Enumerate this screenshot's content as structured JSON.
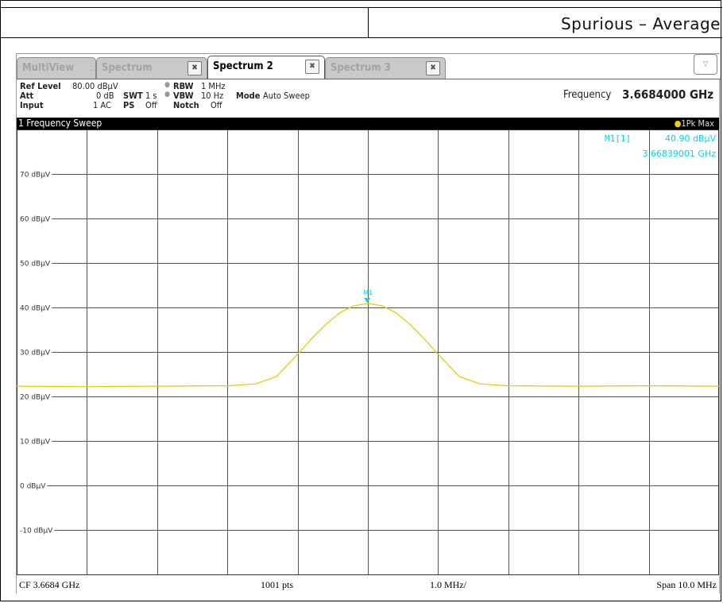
{
  "report_header": {
    "title": "Spurious – Average"
  },
  "tabs": [
    {
      "label": "MultiView",
      "has_grip": true,
      "active": false
    },
    {
      "label": "Spectrum",
      "active": false
    },
    {
      "label": "Spectrum 2",
      "active": true
    },
    {
      "label": "Spectrum 3",
      "active": false
    }
  ],
  "icons": {
    "tab_close": "close-icon",
    "grip": "grid-icon",
    "dropdown": "chevron-down-icon"
  },
  "settings": {
    "ref_level_label": "Ref Level",
    "ref_level_value": "80.00 dBµV",
    "att_label": "Att",
    "att_value": "0 dB",
    "input_label": "Input",
    "input_value": "1 AC",
    "swt_label": "SWT",
    "swt_value": "1 s",
    "ps_label": "PS",
    "ps_value": "Off",
    "rbw_label": "RBW",
    "rbw_value": "1 MHz",
    "vbw_label": "VBW",
    "vbw_value": "10 Hz",
    "notch_label": "Notch",
    "notch_value": "Off",
    "mode_label": "Mode",
    "mode_value": "Auto Sweep",
    "frequency_label": "Frequency",
    "frequency_value": "3.6684000 GHz"
  },
  "diagram": {
    "title": "1 Frequency Sweep",
    "trace_label": "1Pk Max",
    "marker_name": "M1[1]",
    "marker_level": "40.90 dBµV",
    "marker_freq": "3.66839001 GHz",
    "marker_tag": "M1",
    "footer": {
      "cf": "CF 3.6684 GHz",
      "pts": "1001 pts",
      "div": "1.0 MHz/",
      "span": "Span 10.0 MHz"
    }
  },
  "colors": {
    "trace": "#e6c700",
    "marker": "#00d8e8",
    "grid": "#555555",
    "title_bar": "#000000"
  },
  "chart_data": {
    "type": "line",
    "title": "1 Frequency Sweep",
    "xlabel": "",
    "ylabel": "",
    "x_unit": "GHz",
    "y_unit": "dBµV",
    "center_ghz": 3.6684,
    "span_mhz": 10.0,
    "xlim": [
      3.6634,
      3.6734
    ],
    "ylim": [
      -20,
      80
    ],
    "y_ticks": [
      70,
      60,
      50,
      40,
      30,
      20,
      10,
      0,
      -10
    ],
    "y_tick_labels": [
      "70 dBµV",
      "60 dBµV",
      "50 dBµV",
      "40 dBµV",
      "30 dBµV",
      "20 dBµV",
      "10 dBµV",
      "0 dBµV",
      "-10 dBµV"
    ],
    "grid": true,
    "series": [
      {
        "name": "1Pk Max",
        "x": [
          3.6634,
          3.6644,
          3.6654,
          3.6664,
          3.6668,
          3.6671,
          3.6674,
          3.6676,
          3.6678,
          3.668,
          3.6682,
          3.6684,
          3.6686,
          3.6688,
          3.669,
          3.6692,
          3.6694,
          3.6697,
          3.67,
          3.6704,
          3.6714,
          3.6724,
          3.6734
        ],
        "y": [
          22.3,
          22.2,
          22.3,
          22.4,
          22.8,
          24.5,
          29.5,
          33.0,
          36.2,
          38.8,
          40.4,
          40.9,
          40.4,
          38.8,
          36.2,
          33.0,
          29.5,
          24.5,
          22.8,
          22.4,
          22.3,
          22.4,
          22.3
        ]
      }
    ],
    "markers": [
      {
        "name": "M1",
        "x": 3.66839001,
        "y": 40.9
      }
    ]
  }
}
